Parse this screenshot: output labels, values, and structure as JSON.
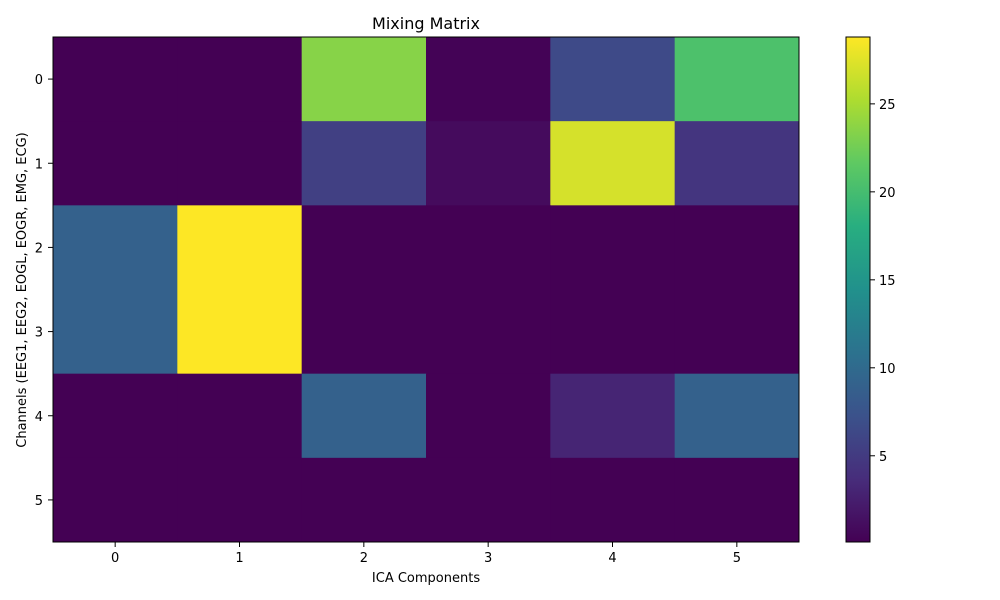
{
  "chart_data": {
    "type": "heatmap",
    "title": "Mixing Matrix",
    "xlabel": "ICA Components",
    "ylabel": "Channels (EEG1, EEG2, EOGL, EOGR, EMG, ECG)",
    "x_ticks": [
      "0",
      "1",
      "2",
      "3",
      "4",
      "5"
    ],
    "y_ticks": [
      "0",
      "1",
      "2",
      "3",
      "4",
      "5"
    ],
    "values": [
      [
        0.1,
        0.1,
        23.5,
        0.3,
        6.5,
        20.5
      ],
      [
        0.1,
        0.1,
        5.5,
        0.9,
        27.0,
        4.5
      ],
      [
        9.0,
        28.8,
        0.1,
        0.1,
        0.1,
        0.1
      ],
      [
        9.0,
        28.8,
        0.1,
        0.1,
        0.1,
        0.1
      ],
      [
        0.1,
        0.1,
        9.0,
        0.1,
        3.0,
        9.0
      ],
      [
        0.1,
        0.1,
        0.1,
        0.1,
        0.1,
        0.1
      ]
    ],
    "vmin": 0.1,
    "vmax": 28.8,
    "colormap": "viridis",
    "colorbar_ticks": [
      5,
      10,
      15,
      20,
      25
    ],
    "colorbar_tick_labels": [
      "5",
      "10",
      "15",
      "20",
      "25"
    ]
  }
}
